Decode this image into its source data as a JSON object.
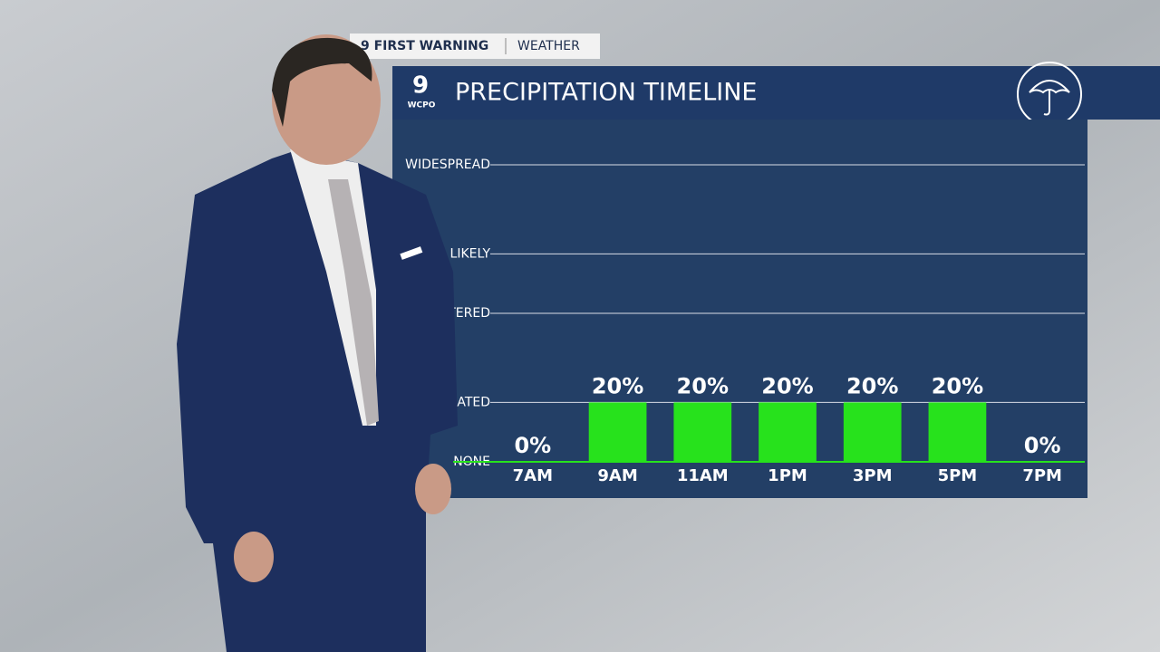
{
  "banner": {
    "brand": "9 FIRST WARNING",
    "section": "WEATHER"
  },
  "logo": {
    "number": "9",
    "text": "WCPO"
  },
  "chart_data": {
    "type": "bar",
    "title": "PRECIPITATION TIMELINE",
    "categories": [
      "7AM",
      "9AM",
      "11AM",
      "1PM",
      "3PM",
      "5PM",
      "7PM"
    ],
    "values": [
      0,
      20,
      20,
      20,
      20,
      20,
      0
    ],
    "value_labels": [
      "0%",
      "20%",
      "20%",
      "20%",
      "20%",
      "20%",
      "0%"
    ],
    "color": "#27e21c",
    "ylim": [
      0,
      100
    ],
    "yticks": [
      {
        "value": 0,
        "label": "NONE"
      },
      {
        "value": 20,
        "label": "ATED"
      },
      {
        "value": 50,
        "label": "TERED"
      },
      {
        "value": 70,
        "label": "LIKELY"
      },
      {
        "value": 100,
        "label": "WIDESPREAD"
      }
    ],
    "grid": true
  }
}
